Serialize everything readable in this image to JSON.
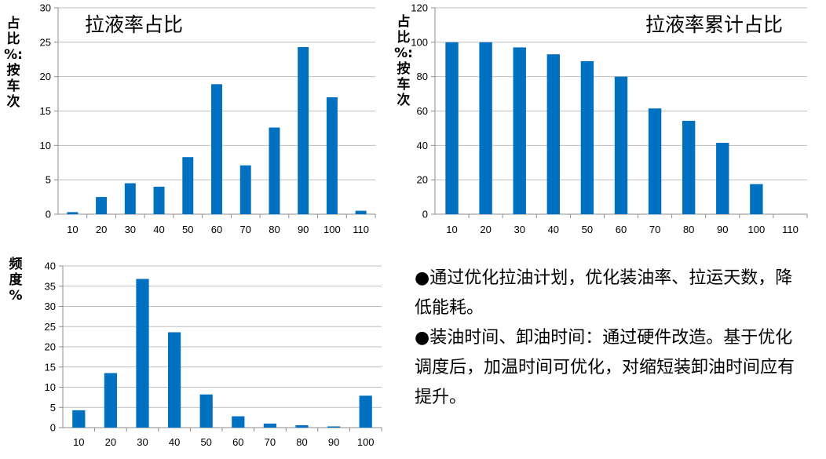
{
  "chart_data": [
    {
      "id": "share",
      "type": "bar",
      "title": "拉液率占比",
      "ylabel_lines": [
        "占",
        "比",
        "%:",
        "按",
        "车",
        "次"
      ],
      "categories": [
        "10",
        "20",
        "30",
        "40",
        "50",
        "60",
        "70",
        "80",
        "90",
        "100",
        "110"
      ],
      "values": [
        0.3,
        2.5,
        4.5,
        4.0,
        8.3,
        18.9,
        7.1,
        12.6,
        24.3,
        17.0,
        0.5
      ],
      "ylim": [
        0,
        30
      ],
      "yticks": [
        0,
        5,
        10,
        15,
        20,
        25,
        30
      ],
      "grid": true,
      "color": "#0070C0"
    },
    {
      "id": "cumulative",
      "type": "bar",
      "title": "拉液率累计占比",
      "ylabel_lines": [
        "占",
        "比",
        "%:",
        "按",
        "车",
        "次"
      ],
      "categories": [
        "10",
        "20",
        "30",
        "40",
        "50",
        "60",
        "70",
        "80",
        "90",
        "100",
        "110"
      ],
      "values": [
        100,
        100,
        97,
        93,
        89,
        80,
        61.5,
        54.3,
        41.5,
        17.5,
        0
      ],
      "ylim": [
        0,
        120
      ],
      "yticks": [
        0,
        20,
        40,
        60,
        80,
        100,
        120
      ],
      "grid": true,
      "color": "#0070C0"
    },
    {
      "id": "frequency",
      "type": "bar",
      "title": "",
      "ylabel_lines": [
        "频",
        "度",
        "%"
      ],
      "categories": [
        "10",
        "20",
        "30",
        "40",
        "50",
        "60",
        "70",
        "80",
        "90",
        "100"
      ],
      "values": [
        4.3,
        13.5,
        36.8,
        23.6,
        8.2,
        2.8,
        1.0,
        0.6,
        0.3,
        7.9
      ],
      "ylim": [
        0,
        40
      ],
      "yticks": [
        0,
        5,
        10,
        15,
        20,
        25,
        30,
        35,
        40
      ],
      "grid": true,
      "color": "#0070C0"
    }
  ],
  "notes": [
    "●通过优化拉油计划，优化装油率、拉运天数，降低能耗。",
    "●装油时间、卸油时间：通过硬件改造。基于优化调度后，加温时间可优化，对缩短装卸油时间应有提升。"
  ]
}
